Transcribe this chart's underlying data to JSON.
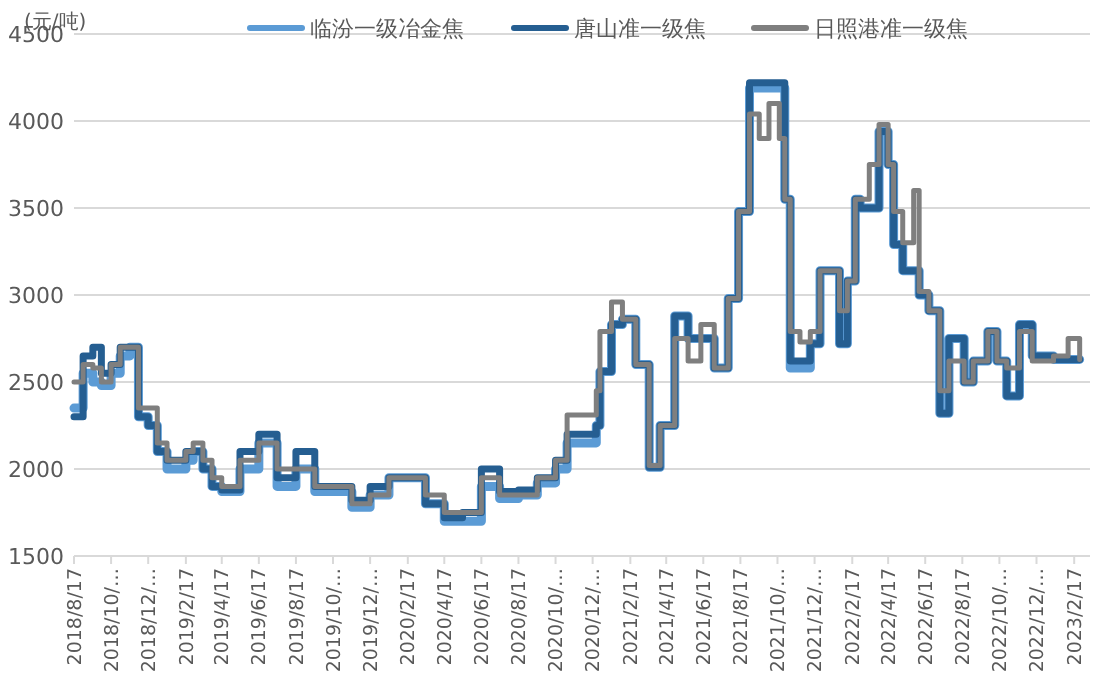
{
  "chart_data": {
    "type": "step",
    "ylabel": "(元/吨)",
    "legend": "top",
    "grid": "y",
    "line_style": "solid",
    "marker": "none",
    "xlim": [
      "2018-08-17",
      "2023-03-15"
    ],
    "ylim": [
      1500,
      4500
    ],
    "yticks": [
      1500,
      2000,
      2500,
      3000,
      3500,
      4000,
      4500
    ],
    "xticks": [
      {
        "value": "2018-08-17",
        "label": "2018/8/17"
      },
      {
        "value": "2018-10-17",
        "label": "2018/10/…"
      },
      {
        "value": "2018-12-17",
        "label": "2018/12/…"
      },
      {
        "value": "2019-02-17",
        "label": "2019/2/17"
      },
      {
        "value": "2019-04-17",
        "label": "2019/4/17"
      },
      {
        "value": "2019-06-17",
        "label": "2019/6/17"
      },
      {
        "value": "2019-08-17",
        "label": "2019/8/17"
      },
      {
        "value": "2019-10-17",
        "label": "2019/10/…"
      },
      {
        "value": "2019-12-17",
        "label": "2019/12/…"
      },
      {
        "value": "2020-02-17",
        "label": "2020/2/17"
      },
      {
        "value": "2020-04-17",
        "label": "2020/4/17"
      },
      {
        "value": "2020-06-17",
        "label": "2020/6/17"
      },
      {
        "value": "2020-08-17",
        "label": "2020/8/17"
      },
      {
        "value": "2020-10-17",
        "label": "2020/10/…"
      },
      {
        "value": "2020-12-17",
        "label": "2020/12/…"
      },
      {
        "value": "2021-02-17",
        "label": "2021/2/17"
      },
      {
        "value": "2021-04-17",
        "label": "2021/4/17"
      },
      {
        "value": "2021-06-17",
        "label": "2021/6/17"
      },
      {
        "value": "2021-08-17",
        "label": "2021/8/17"
      },
      {
        "value": "2021-10-17",
        "label": "2021/10/…"
      },
      {
        "value": "2021-12-17",
        "label": "2021/12/…"
      },
      {
        "value": "2022-02-17",
        "label": "2022/2/17"
      },
      {
        "value": "2022-04-17",
        "label": "2022/4/17"
      },
      {
        "value": "2022-06-17",
        "label": "2022/6/17"
      },
      {
        "value": "2022-08-17",
        "label": "2022/8/17"
      },
      {
        "value": "2022-10-17",
        "label": "2022/10/…"
      },
      {
        "value": "2022-12-17",
        "label": "2022/12/…"
      },
      {
        "value": "2023-02-17",
        "label": "2023/2/17"
      }
    ],
    "x": [
      "2018-08-17",
      "2018-09-01",
      "2018-09-17",
      "2018-10-01",
      "2018-10-17",
      "2018-11-01",
      "2018-11-17",
      "2018-12-01",
      "2018-12-17",
      "2019-01-01",
      "2019-01-17",
      "2019-02-17",
      "2019-03-01",
      "2019-03-17",
      "2019-04-01",
      "2019-04-17",
      "2019-05-17",
      "2019-06-17",
      "2019-07-17",
      "2019-08-17",
      "2019-09-17",
      "2019-10-17",
      "2019-11-17",
      "2019-12-17",
      "2020-01-17",
      "2020-02-17",
      "2020-03-17",
      "2020-04-17",
      "2020-05-17",
      "2020-06-17",
      "2020-07-17",
      "2020-08-17",
      "2020-09-17",
      "2020-10-17",
      "2020-11-05",
      "2020-12-23",
      "2020-12-29",
      "2021-01-17",
      "2021-02-04",
      "2021-02-26",
      "2021-03-20",
      "2021-04-07",
      "2021-05-01",
      "2021-05-23",
      "2021-06-13",
      "2021-07-05",
      "2021-07-28",
      "2021-08-14",
      "2021-09-01",
      "2021-09-17",
      "2021-10-03",
      "2021-10-20",
      "2021-10-29",
      "2021-11-07",
      "2021-11-23",
      "2021-12-10",
      "2021-12-26",
      "2022-01-18",
      "2022-01-27",
      "2022-02-09",
      "2022-02-22",
      "2022-03-02",
      "2022-03-17",
      "2022-04-02",
      "2022-04-17",
      "2022-04-26",
      "2022-05-11",
      "2022-05-29",
      "2022-06-07",
      "2022-06-23",
      "2022-07-11",
      "2022-07-26",
      "2022-08-20",
      "2022-09-04",
      "2022-09-28",
      "2022-10-13",
      "2022-10-29",
      "2022-11-19",
      "2022-12-10",
      "2023-01-14",
      "2023-02-07",
      "2023-02-26"
    ],
    "series": [
      {
        "name": "临汾一级冶金焦",
        "color": "#5b9bd5",
        "values": [
          2350,
          2550,
          2500,
          2480,
          2550,
          2650,
          2700,
          2300,
          2250,
          2100,
          2000,
          2050,
          2100,
          2000,
          1900,
          1870,
          2000,
          2150,
          1900,
          2000,
          1870,
          1870,
          1780,
          1850,
          1950,
          1950,
          1800,
          1700,
          1700,
          1900,
          1830,
          1850,
          1920,
          2000,
          2150,
          2250,
          2560,
          2830,
          2860,
          2600,
          2010,
          2250,
          2880,
          2750,
          2750,
          2580,
          2980,
          3480,
          4190,
          4190,
          4190,
          4190,
          3550,
          2580,
          2580,
          2720,
          3140,
          3140,
          2720,
          3080,
          3550,
          3500,
          3500,
          3940,
          3750,
          3290,
          3140,
          3140,
          3000,
          2910,
          2320,
          2750,
          2500,
          2620,
          2790,
          2620,
          2420,
          2830,
          2650,
          2630,
          2630,
          2630
        ]
      },
      {
        "name": "唐山准一级焦",
        "color": "#255e91",
        "values": [
          2300,
          2650,
          2700,
          2550,
          2600,
          2700,
          2700,
          2300,
          2250,
          2100,
          2050,
          2100,
          2100,
          2000,
          1900,
          1880,
          2100,
          2200,
          1950,
          2100,
          1900,
          1900,
          1820,
          1900,
          1950,
          1950,
          1800,
          1720,
          1750,
          2000,
          1870,
          1880,
          1950,
          2050,
          2200,
          2250,
          2560,
          2830,
          2860,
          2600,
          2010,
          2250,
          2880,
          2750,
          2750,
          2580,
          2980,
          3480,
          4220,
          4220,
          4220,
          4220,
          3550,
          2620,
          2620,
          2720,
          3140,
          3140,
          2720,
          3080,
          3550,
          3500,
          3500,
          3940,
          3750,
          3290,
          3140,
          3140,
          3000,
          2910,
          2320,
          2750,
          2500,
          2620,
          2790,
          2620,
          2420,
          2830,
          2650,
          2630,
          2630,
          2630
        ]
      },
      {
        "name": "日照港准一级焦",
        "color": "#7f7f7f",
        "values": [
          2500,
          2600,
          2580,
          2500,
          2600,
          2700,
          2700,
          2350,
          2350,
          2150,
          2050,
          2100,
          2150,
          2050,
          1950,
          1900,
          2050,
          2150,
          2000,
          2000,
          1900,
          1900,
          1800,
          1850,
          1950,
          1950,
          1850,
          1750,
          1750,
          1950,
          1850,
          1850,
          1950,
          2050,
          2310,
          2450,
          2790,
          2960,
          2860,
          2600,
          2020,
          2250,
          2750,
          2620,
          2830,
          2580,
          2980,
          3480,
          4040,
          3900,
          4100,
          3900,
          3550,
          2790,
          2730,
          2790,
          3140,
          3140,
          2910,
          3080,
          3550,
          3550,
          3750,
          3980,
          3750,
          3480,
          3300,
          3600,
          3020,
          2910,
          2450,
          2620,
          2500,
          2620,
          2790,
          2620,
          2580,
          2790,
          2620,
          2650,
          2750,
          2630
        ]
      }
    ]
  }
}
